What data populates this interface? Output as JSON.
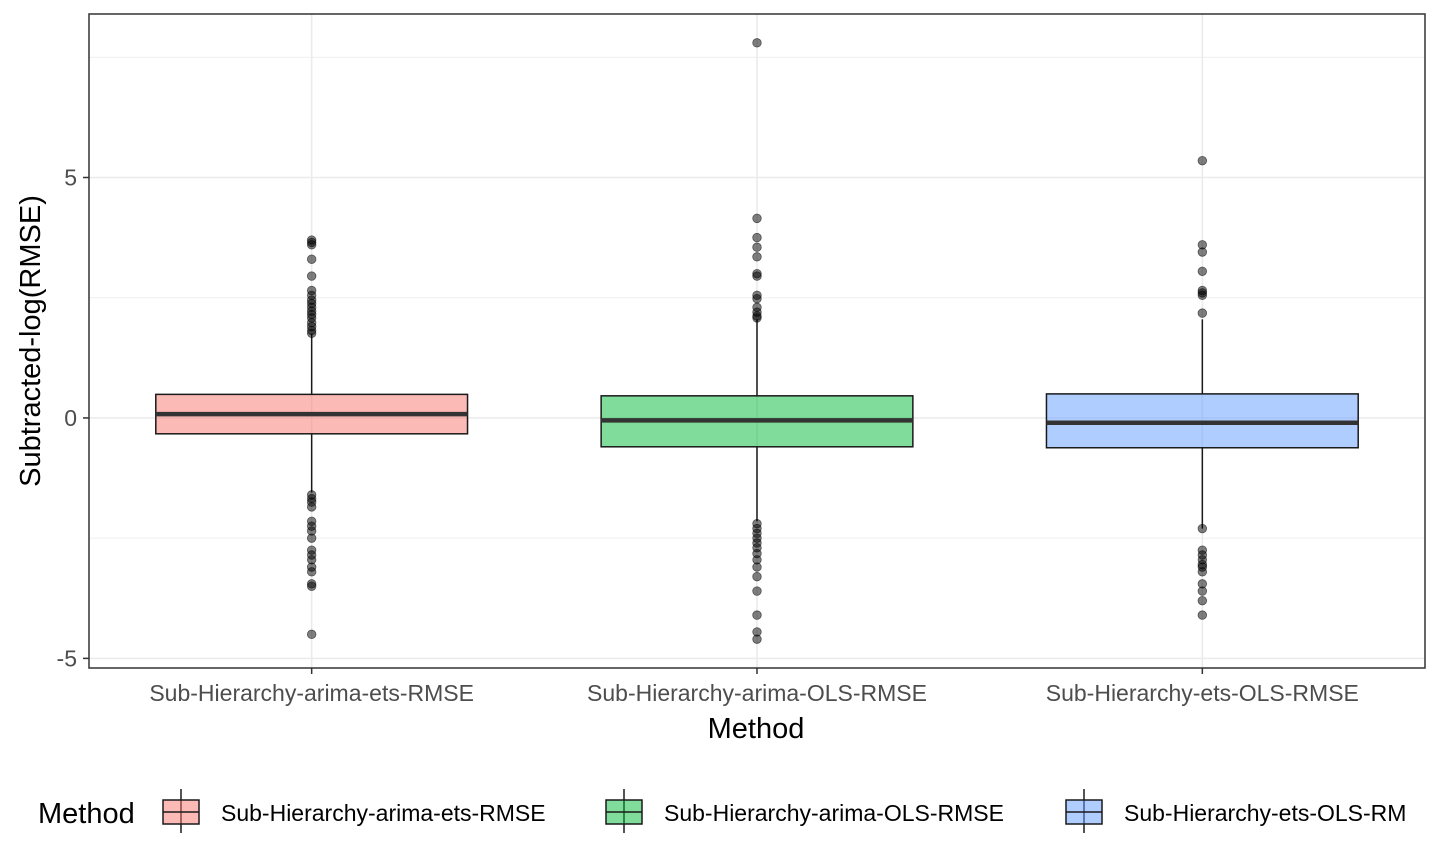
{
  "chart_data": {
    "type": "boxplot",
    "title": "",
    "xlabel": "Method",
    "ylabel": "Subtracted-log(RMSE)",
    "ylim": [
      -5.2,
      8.4
    ],
    "y_ticks": [
      -5,
      0,
      5
    ],
    "y_tick_labels": [
      "-5",
      "0",
      "5"
    ],
    "grid": true,
    "legend": {
      "title": "Method",
      "position": "bottom",
      "entries": [
        "Sub-Hierarchy-arima-ets-RMSE",
        "Sub-Hierarchy-arima-OLS-RMSE",
        "Sub-Hierarchy-ets-OLS-RM"
      ]
    },
    "categories": [
      "Sub-Hierarchy-arima-ets-RMSE",
      "Sub-Hierarchy-arima-OLS-RMSE",
      "Sub-Hierarchy-ets-OLS-RMSE"
    ],
    "boxes": [
      {
        "name": "Sub-Hierarchy-arima-ets-RMSE",
        "color": "#F8766D",
        "q1": -0.33,
        "median": 0.08,
        "q3": 0.49,
        "whisker_low": -1.55,
        "whisker_high": 1.75,
        "outliers": [
          3.7,
          3.65,
          3.6,
          3.3,
          2.95,
          2.65,
          2.55,
          2.45,
          2.38,
          2.3,
          2.22,
          2.15,
          2.08,
          1.98,
          1.9,
          1.82,
          1.76,
          -1.6,
          -1.68,
          -1.75,
          -1.85,
          -2.15,
          -2.25,
          -2.35,
          -2.5,
          -2.75,
          -2.85,
          -2.95,
          -3.1,
          -3.2,
          -3.45,
          -3.5,
          -4.5
        ]
      },
      {
        "name": "Sub-Hierarchy-arima-OLS-RMSE",
        "color": "#00BA38",
        "q1": -0.6,
        "median": -0.05,
        "q3": 0.46,
        "whisker_low": -2.15,
        "whisker_high": 2.05,
        "outliers": [
          7.8,
          4.15,
          3.75,
          3.55,
          3.35,
          3.0,
          2.95,
          2.55,
          2.48,
          2.3,
          2.2,
          2.12,
          2.08,
          -2.2,
          -2.3,
          -2.4,
          -2.5,
          -2.6,
          -2.7,
          -2.82,
          -2.95,
          -3.1,
          -3.3,
          -3.6,
          -4.1,
          -4.45,
          -4.6
        ]
      },
      {
        "name": "Sub-Hierarchy-ets-OLS-RMSE",
        "color": "#619CFF",
        "q1": -0.62,
        "median": -0.1,
        "q3": 0.5,
        "whisker_low": -2.3,
        "whisker_high": 2.05,
        "outliers": [
          5.35,
          3.6,
          3.45,
          3.05,
          2.65,
          2.6,
          2.55,
          2.18,
          -2.3,
          -2.75,
          -2.85,
          -2.95,
          -3.05,
          -3.1,
          -3.2,
          -3.45,
          -3.6,
          -3.8,
          -4.1
        ]
      }
    ]
  }
}
